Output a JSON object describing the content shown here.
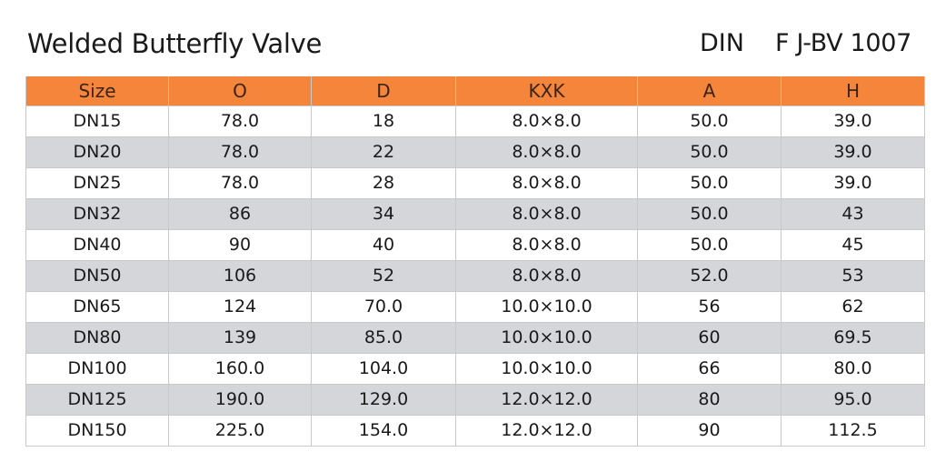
{
  "header": {
    "title": "Welded Butterfly Valve",
    "standard": "DIN",
    "model": "F J-BV 1007"
  },
  "table": {
    "columns": [
      "Size",
      "O",
      "D",
      "KXK",
      "A",
      "H"
    ],
    "rows": [
      [
        "DN15",
        "78.0",
        "18",
        "8.0×8.0",
        "50.0",
        "39.0"
      ],
      [
        "DN20",
        "78.0",
        "22",
        "8.0×8.0",
        "50.0",
        "39.0"
      ],
      [
        "DN25",
        "78.0",
        "28",
        "8.0×8.0",
        "50.0",
        "39.0"
      ],
      [
        "DN32",
        "86",
        "34",
        "8.0×8.0",
        "50.0",
        "43"
      ],
      [
        "DN40",
        "90",
        "40",
        "8.0×8.0",
        "50.0",
        "45"
      ],
      [
        "DN50",
        "106",
        "52",
        "8.0×8.0",
        "52.0",
        "53"
      ],
      [
        "DN65",
        "124",
        "70.0",
        "10.0×10.0",
        "56",
        "62"
      ],
      [
        "DN80",
        "139",
        "85.0",
        "10.0×10.0",
        "60",
        "69.5"
      ],
      [
        "DN100",
        "160.0",
        "104.0",
        "10.0×10.0",
        "66",
        "80.0"
      ],
      [
        "DN125",
        "190.0",
        "129.0",
        "12.0×12.0",
        "80",
        "95.0"
      ],
      [
        "DN150",
        "225.0",
        "154.0",
        "12.0×12.0",
        "90",
        "112.5"
      ]
    ]
  },
  "colors": {
    "header_fill": "#f5853a",
    "stripe_fill": "#d4d6da",
    "border": "#c9c9c9"
  }
}
